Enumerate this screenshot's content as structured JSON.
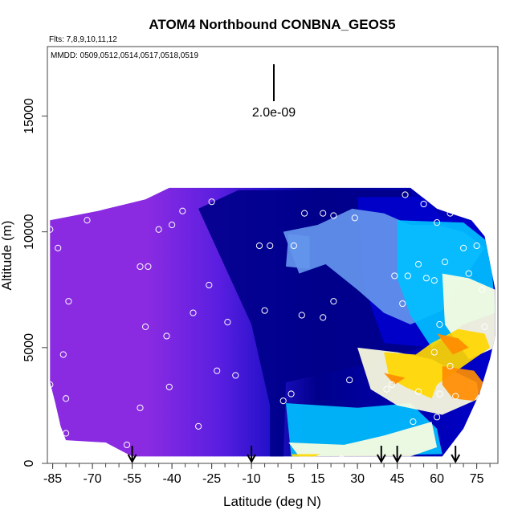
{
  "chart_data": {
    "type": "heatmap",
    "title": "ATOM4 Northbound CONBNA_GEOS5",
    "flights_label": "Flts: 7,8,9,10,11,12",
    "dates_label": "MMDD: 0509,0512,0514,0517,0518,0519",
    "scale_label": "2.0e-09",
    "xlabel": "Latitude (deg N)",
    "ylabel": "Altitude (m)",
    "xlim": [
      -87,
      83
    ],
    "ylim": [
      0,
      18000
    ],
    "x_ticks": [
      -85,
      -70,
      -55,
      -40,
      -25,
      -10,
      5,
      15,
      30,
      45,
      60,
      75
    ],
    "x_tick_labels": [
      "-85",
      "-70",
      "-55",
      "-40",
      "-25",
      "-10",
      "5",
      "15",
      "30",
      "45",
      "60",
      "75"
    ],
    "x_minor_step": 5,
    "y_ticks": [
      0,
      5000,
      10000,
      15000
    ],
    "y_tick_labels": [
      "0",
      "5000",
      "10000",
      "15000"
    ],
    "colors": {
      "purple": "#8a2be2",
      "dark_blue": "#00008b",
      "blue": "#0000cd",
      "light_blue": "#6495ed",
      "cyan": "#00bfff",
      "white": "#ffffe0",
      "yellow": "#ffd700",
      "orange": "#ff8c00"
    },
    "profile_top": [
      {
        "lat": -86,
        "alt": 10500
      },
      {
        "lat": -68,
        "alt": 10900
      },
      {
        "lat": -50,
        "alt": 11400
      },
      {
        "lat": -41,
        "alt": 11900
      },
      {
        "lat": 50,
        "alt": 11900
      },
      {
        "lat": 60,
        "alt": 11000
      },
      {
        "lat": 65,
        "alt": 10800
      },
      {
        "lat": 73,
        "alt": 10500
      },
      {
        "lat": 78,
        "alt": 9800
      },
      {
        "lat": 82,
        "alt": 7500
      },
      {
        "lat": 82,
        "alt": 5500
      }
    ],
    "profile_bottom": [
      {
        "lat": -86,
        "alt": 3500
      },
      {
        "lat": -84,
        "alt": 2600
      },
      {
        "lat": -82,
        "alt": 1600
      },
      {
        "lat": -80,
        "alt": 1000
      },
      {
        "lat": -65,
        "alt": 900
      },
      {
        "lat": -60,
        "alt": 600
      },
      {
        "lat": -55,
        "alt": 300
      },
      {
        "lat": 62,
        "alt": 300
      },
      {
        "lat": 70,
        "alt": 1500
      },
      {
        "lat": 76,
        "alt": 3000
      },
      {
        "lat": 80,
        "alt": 4500
      }
    ],
    "regions": [
      {
        "color": "dark_blue",
        "points": [
          [
            -15,
            11800
          ],
          [
            50,
            11800
          ],
          [
            54,
            10000
          ],
          [
            60,
            7600
          ],
          [
            54,
            5000
          ],
          [
            30,
            4200
          ],
          [
            3,
            3500
          ],
          [
            2,
            0
          ],
          [
            -3,
            0
          ],
          [
            -3,
            2500
          ],
          [
            -10,
            6000
          ],
          [
            -22,
            9000
          ],
          [
            -30,
            11000
          ]
        ]
      },
      {
        "color": "blue",
        "points": [
          [
            30,
            11500
          ],
          [
            55,
            11500
          ],
          [
            62,
            10600
          ],
          [
            78,
            10400
          ],
          [
            80,
            9400
          ],
          [
            68,
            7000
          ],
          [
            58,
            5000
          ],
          [
            40,
            5200
          ],
          [
            32,
            7800
          ]
        ]
      },
      {
        "color": "light_blue",
        "points": [
          [
            2,
            10000
          ],
          [
            15,
            10300
          ],
          [
            28,
            11000
          ],
          [
            40,
            10800
          ],
          [
            50,
            10300
          ],
          [
            60,
            10300
          ],
          [
            70,
            10000
          ],
          [
            78,
            9300
          ],
          [
            62,
            6600
          ],
          [
            50,
            6000
          ],
          [
            40,
            6500
          ],
          [
            30,
            7500
          ],
          [
            18,
            8600
          ],
          [
            8,
            8200
          ]
        ]
      },
      {
        "color": "light_blue",
        "points": [
          [
            3,
            8500
          ],
          [
            12,
            8400
          ],
          [
            12,
            9800
          ],
          [
            4,
            9900
          ]
        ]
      },
      {
        "color": "cyan",
        "points": [
          [
            45,
            10500
          ],
          [
            70,
            10400
          ],
          [
            80,
            9500
          ],
          [
            82,
            6500
          ],
          [
            70,
            6000
          ],
          [
            58,
            5000
          ],
          [
            50,
            6400
          ],
          [
            45,
            8000
          ]
        ]
      },
      {
        "color": "cyan",
        "points": [
          [
            3,
            2600
          ],
          [
            30,
            2400
          ],
          [
            50,
            2600
          ],
          [
            60,
            1500
          ],
          [
            62,
            400
          ],
          [
            5,
            300
          ]
        ]
      },
      {
        "color": "white",
        "points": [
          [
            62,
            8200
          ],
          [
            72,
            8000
          ],
          [
            82,
            7500
          ],
          [
            82,
            5000
          ],
          [
            72,
            4500
          ],
          [
            63,
            6000
          ]
        ]
      },
      {
        "color": "white",
        "points": [
          [
            30,
            5000
          ],
          [
            45,
            4800
          ],
          [
            58,
            4500
          ],
          [
            66,
            4000
          ],
          [
            75,
            3500
          ],
          [
            76,
            2800
          ],
          [
            62,
            2100
          ],
          [
            45,
            2500
          ],
          [
            35,
            3200
          ]
        ]
      },
      {
        "color": "white",
        "points": [
          [
            4,
            900
          ],
          [
            25,
            800
          ],
          [
            40,
            1200
          ],
          [
            58,
            1800
          ],
          [
            60,
            700
          ],
          [
            50,
            300
          ],
          [
            8,
            300
          ]
        ]
      },
      {
        "color": "yellow",
        "points": [
          [
            40,
            4800
          ],
          [
            52,
            4700
          ],
          [
            58,
            5200
          ],
          [
            68,
            5800
          ],
          [
            78,
            5600
          ],
          [
            80,
            5000
          ],
          [
            70,
            4200
          ],
          [
            60,
            3400
          ],
          [
            58,
            2800
          ],
          [
            48,
            3300
          ],
          [
            42,
            3700
          ]
        ]
      },
      {
        "color": "yellow",
        "points": [
          [
            5,
            400
          ],
          [
            16,
            400
          ],
          [
            12,
            200
          ],
          [
            6,
            200
          ]
        ]
      },
      {
        "color": "orange",
        "points": [
          [
            60,
            5600
          ],
          [
            68,
            5400
          ],
          [
            72,
            5000
          ],
          [
            66,
            4700
          ]
        ]
      },
      {
        "color": "orange",
        "points": [
          [
            62,
            4200
          ],
          [
            74,
            4000
          ],
          [
            78,
            3400
          ],
          [
            74,
            2700
          ],
          [
            66,
            2800
          ],
          [
            62,
            3400
          ]
        ]
      },
      {
        "color": "orange",
        "points": [
          [
            40,
            3900
          ],
          [
            48,
            3700
          ],
          [
            44,
            3400
          ]
        ]
      }
    ],
    "points": [
      {
        "lat": -86,
        "alt": 10100
      },
      {
        "lat": -83,
        "alt": 9300
      },
      {
        "lat": -79,
        "alt": 7000
      },
      {
        "lat": -81,
        "alt": 4700
      },
      {
        "lat": -86,
        "alt": 3400
      },
      {
        "lat": -80,
        "alt": 2800
      },
      {
        "lat": -80,
        "alt": 1300
      },
      {
        "lat": -72,
        "alt": 10500
      },
      {
        "lat": -57,
        "alt": 800
      },
      {
        "lat": -52,
        "alt": 8500
      },
      {
        "lat": -49,
        "alt": 8500
      },
      {
        "lat": -50,
        "alt": 5900
      },
      {
        "lat": -52,
        "alt": 2400
      },
      {
        "lat": -53,
        "alt": 100
      },
      {
        "lat": -45,
        "alt": 10100
      },
      {
        "lat": -40,
        "alt": 10300
      },
      {
        "lat": -42,
        "alt": 5500
      },
      {
        "lat": -41,
        "alt": 3300
      },
      {
        "lat": -36,
        "alt": 10900
      },
      {
        "lat": -37,
        "alt": 100
      },
      {
        "lat": -32,
        "alt": 6500
      },
      {
        "lat": -30,
        "alt": 1600
      },
      {
        "lat": -25,
        "alt": 11300
      },
      {
        "lat": -26,
        "alt": 7700
      },
      {
        "lat": -23,
        "alt": 4000
      },
      {
        "lat": -19,
        "alt": 6100
      },
      {
        "lat": -16,
        "alt": 3800
      },
      {
        "lat": -7,
        "alt": 9400
      },
      {
        "lat": -5,
        "alt": 6600
      },
      {
        "lat": -3,
        "alt": 9400
      },
      {
        "lat": -4,
        "alt": 0
      },
      {
        "lat": 2,
        "alt": 2700
      },
      {
        "lat": 3,
        "alt": 100
      },
      {
        "lat": 6,
        "alt": 9400
      },
      {
        "lat": 9,
        "alt": 6400
      },
      {
        "lat": 5,
        "alt": 3000
      },
      {
        "lat": 10,
        "alt": 10800
      },
      {
        "lat": 17,
        "alt": 10800
      },
      {
        "lat": 21,
        "alt": 10700
      },
      {
        "lat": 17,
        "alt": 6300
      },
      {
        "lat": 21,
        "alt": 7000
      },
      {
        "lat": 29,
        "alt": 10600
      },
      {
        "lat": 24,
        "alt": 200
      },
      {
        "lat": 27,
        "alt": 3600
      },
      {
        "lat": 41,
        "alt": 3200
      },
      {
        "lat": 43,
        "alt": 3400
      },
      {
        "lat": 44,
        "alt": 8100
      },
      {
        "lat": 47,
        "alt": 6900
      },
      {
        "lat": 48,
        "alt": 11600
      },
      {
        "lat": 49,
        "alt": 8100
      },
      {
        "lat": 53,
        "alt": 8600
      },
      {
        "lat": 53,
        "alt": 3100
      },
      {
        "lat": 51,
        "alt": 1800
      },
      {
        "lat": 55,
        "alt": 11200
      },
      {
        "lat": 56,
        "alt": 8000
      },
      {
        "lat": 59,
        "alt": 7900
      },
      {
        "lat": 61,
        "alt": 6000
      },
      {
        "lat": 59,
        "alt": 4800
      },
      {
        "lat": 61,
        "alt": 3000
      },
      {
        "lat": 60,
        "alt": 2000
      },
      {
        "lat": 60,
        "alt": 10400
      },
      {
        "lat": 63,
        "alt": 8700
      },
      {
        "lat": 65,
        "alt": 10800
      },
      {
        "lat": 65,
        "alt": 4200
      },
      {
        "lat": 67,
        "alt": 2900
      },
      {
        "lat": 70,
        "alt": 9300
      },
      {
        "lat": 72,
        "alt": 8200
      },
      {
        "lat": 73,
        "alt": 10900
      },
      {
        "lat": 75,
        "alt": 9400
      },
      {
        "lat": 77,
        "alt": 7500
      },
      {
        "lat": 78,
        "alt": 5900
      }
    ],
    "arrows_lat": [
      -55,
      -10,
      39,
      45,
      67
    ]
  }
}
